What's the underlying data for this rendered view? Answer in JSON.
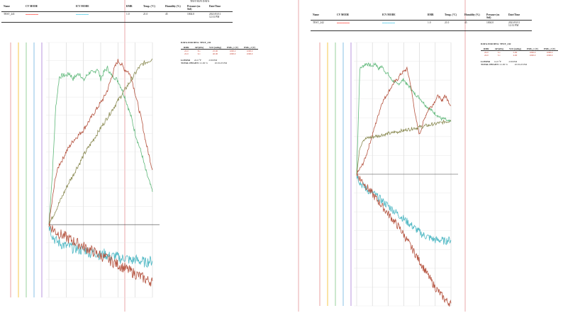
{
  "colors": {
    "red_trace": "#b5533f",
    "cyan_trace": "#4fb8c4",
    "green_trace": "#5fb87a",
    "olive_trace": "#8a8a52",
    "watermark": "#f1c9cb"
  },
  "report1": {
    "title_top": "TEST RUN DATA",
    "columns": [
      "Name",
      "CV MODE",
      "ICV MODE",
      "RMR",
      "Temp. (°C)",
      "Humidity (%)",
      "Pressure (m Std)",
      "Date/Time"
    ],
    "row": [
      "TEST_241",
      "",
      "",
      "1.0",
      "21.0",
      "45",
      "1004.0",
      "2021/03/11"
    ],
    "row_extra": "12:31 PM",
    "data_title": "DATA FOR DEG: TEST_241",
    "data_cols": [
      "RMR",
      "AP (kPa)",
      "VO2 (ml/kg)",
      "EMG_1 (V)",
      "EMG_2 (V)"
    ],
    "data_rows": [
      [
        "22.0",
        "8.1",
        "25.00",
        "1000.0",
        "1000.0"
      ],
      [
        "22.0",
        "9.1",
        "40.00",
        "1000.0",
        "1000.0"
      ]
    ],
    "legend": [
      [
        "LOWER",
        "22.0 °F",
        "2:00 PM"
      ],
      [
        "TOTAL HYGEN:",
        "21.00 %",
        "10:19:23 PM"
      ]
    ]
  },
  "report2": {
    "columns": [
      "Name",
      "CV MODE",
      "ICV MODE",
      "RMR",
      "Temp. (°C)",
      "Humidity (%)",
      "Pressure (m Std)",
      "Date/Time"
    ],
    "row": [
      "TEST_242",
      "",
      "",
      "1.0",
      "21.0",
      "45",
      "1004.0",
      "2021/03/11"
    ],
    "row_extra": "12:31 PM",
    "data_title": "DATA FOR DEG: TEST_242",
    "data_cols": [
      "RMR",
      "AP (kPa)",
      "VO2 (ml/kg)",
      "EMG_1 (V)",
      "EMG_2 (V)"
    ],
    "data_rows": [
      [
        "24.0",
        "5.1",
        "5.00",
        "1000.0",
        "1000.0"
      ],
      [
        "24.0",
        "5.1",
        "4.00",
        "1000.0",
        "1000.0"
      ]
    ],
    "legend": [
      [
        "LOWER",
        "14.0 °F",
        "2:00 PM"
      ],
      [
        "TOTAL HYGEN:",
        "21.00 %",
        "10:19:23 PM"
      ]
    ]
  },
  "chart_data": [
    {
      "type": "line",
      "x": [
        0,
        1,
        2,
        3,
        4,
        5,
        6,
        7,
        8,
        9,
        10,
        11,
        12,
        13,
        14,
        15,
        16,
        17,
        18,
        19,
        20,
        21,
        22,
        23,
        24,
        25,
        26,
        27,
        28,
        29,
        30
      ],
      "series": [
        {
          "color": "#5fb87a",
          "values": [
            0,
            28,
            65,
            81,
            82,
            82,
            83,
            80,
            82,
            83,
            79,
            82,
            84,
            83,
            86,
            80,
            84,
            86,
            82,
            81,
            79,
            75,
            70,
            64,
            58,
            50,
            44,
            38,
            30,
            24,
            18
          ]
        },
        {
          "color": "#b5533f",
          "values": [
            0,
            14,
            27,
            33,
            36,
            40,
            43,
            46,
            48,
            50,
            52,
            55,
            58,
            61,
            64,
            67,
            70,
            74,
            80,
            86,
            90,
            88,
            85,
            84,
            80,
            72,
            64,
            56,
            46,
            38,
            30
          ]
        },
        {
          "color": "#8a8a52",
          "values": [
            0,
            4,
            8,
            12,
            16,
            20,
            24,
            27,
            31,
            34,
            38,
            41,
            44,
            47,
            50,
            53,
            56,
            59,
            62,
            65,
            68,
            71,
            74,
            77,
            80,
            83,
            86,
            88,
            89,
            90,
            91
          ]
        },
        {
          "color": "#4fb8c4",
          "values": [
            0,
            -6,
            -9,
            -10,
            -11,
            -12,
            -12,
            -13,
            -13,
            -14,
            -14,
            -14,
            -16,
            -15,
            -16,
            -17,
            -16,
            -17,
            -18,
            -17,
            -18,
            -19,
            -18,
            -19,
            -20,
            -19,
            -20,
            -20,
            -21,
            -20,
            -20
          ]
        },
        {
          "color": "#b5533f",
          "values": [
            0,
            -2,
            -4,
            -5,
            -6,
            -7,
            -8,
            -9,
            -10,
            -11,
            -12,
            -13,
            -14,
            -15,
            -16,
            -17,
            -18,
            -19,
            -20,
            -21,
            -22,
            -23,
            -24,
            -25,
            -26,
            -27,
            -28,
            -29,
            -30,
            -31,
            -31
          ]
        }
      ],
      "ylim": [
        -40,
        100
      ]
    },
    {
      "type": "line",
      "x": [
        0,
        1,
        2,
        3,
        4,
        5,
        6,
        7,
        8,
        9,
        10,
        11,
        12,
        13,
        14,
        15,
        16,
        17,
        18,
        19,
        20,
        21,
        22,
        23,
        24,
        25,
        26,
        27,
        28,
        29,
        30
      ],
      "series": [
        {
          "color": "#5fb87a",
          "values": [
            0,
            80,
            82,
            84,
            83,
            82,
            84,
            80,
            82,
            78,
            76,
            72,
            70,
            68,
            70,
            72,
            68,
            66,
            62,
            60,
            58,
            55,
            52,
            50,
            48,
            46,
            44,
            42,
            42,
            40,
            40
          ]
        },
        {
          "color": "#b5533f",
          "values": [
            0,
            4,
            8,
            14,
            22,
            30,
            38,
            46,
            54,
            58,
            62,
            66,
            70,
            72,
            76,
            78,
            80,
            70,
            55,
            40,
            30,
            38,
            45,
            50,
            52,
            56,
            60,
            55,
            60,
            56,
            52
          ]
        },
        {
          "color": "#8a8a52",
          "values": [
            0,
            20,
            26,
            27,
            28,
            28,
            29,
            29,
            30,
            30,
            31,
            31,
            32,
            32,
            33,
            33,
            34,
            34,
            35,
            35,
            36,
            36,
            37,
            37,
            38,
            38,
            39,
            39,
            40,
            40,
            41
          ]
        },
        {
          "color": "#4fb8c4",
          "values": [
            0,
            -6,
            -9,
            -11,
            -13,
            -14,
            -16,
            -18,
            -20,
            -22,
            -24,
            -26,
            -28,
            -30,
            -32,
            -34,
            -36,
            -38,
            -40,
            -42,
            -44,
            -46,
            -47,
            -48,
            -49,
            -50,
            -50,
            -50,
            -51,
            -50,
            -50
          ]
        },
        {
          "color": "#b5533f",
          "values": [
            0,
            -3,
            -6,
            -9,
            -12,
            -15,
            -18,
            -21,
            -24,
            -27,
            -30,
            -33,
            -36,
            -39,
            -42,
            -46,
            -50,
            -54,
            -58,
            -62,
            -66,
            -70,
            -74,
            -78,
            -82,
            -86,
            -89,
            -92,
            -95,
            -97,
            -98
          ]
        }
      ],
      "ylim": [
        -100,
        100
      ]
    }
  ]
}
